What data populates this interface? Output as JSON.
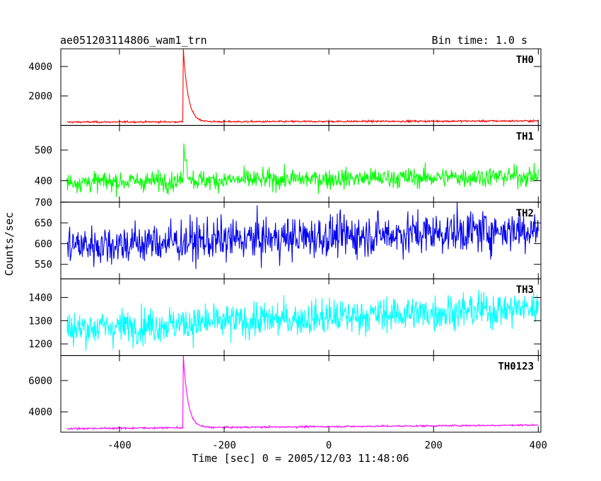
{
  "header": {
    "title": "ae051203114806_wam1_trn",
    "bin_time": "Bin time: 1.0 s"
  },
  "chart_data": {
    "type": "line",
    "xlabel": "Time [sec] 0 = 2005/12/03 11:48:06",
    "ylabel": "Counts/sec",
    "xlim": [
      -512,
      405
    ],
    "x_ticks": [
      -400,
      -200,
      0,
      200,
      400
    ],
    "time_range": [
      -500,
      400
    ],
    "panels": [
      {
        "name": "TH0",
        "color": "#ff0000",
        "ylim": [
          0,
          5200
        ],
        "y_ticks": [
          2000,
          4000
        ],
        "baseline": 230,
        "trend": 80,
        "noise": 60,
        "peak_value": 5200,
        "peak_time": -278,
        "decay": 9
      },
      {
        "name": "TH1",
        "color": "#00ff00",
        "ylim": [
          330,
          580
        ],
        "y_ticks": [
          400,
          500
        ],
        "baseline": 395,
        "trend": 20,
        "noise": 32,
        "peak_value": 540,
        "peak_time": -277,
        "decay": 5
      },
      {
        "name": "TH2",
        "color": "#0000ee",
        "ylim": [
          515,
          700
        ],
        "y_ticks": [
          550,
          600,
          650,
          700
        ],
        "baseline": 595,
        "trend": 40,
        "noise": 50,
        "peak_value": 0,
        "peak_time": -277,
        "decay": 5
      },
      {
        "name": "TH3",
        "color": "#00ffff",
        "ylim": [
          1150,
          1480
        ],
        "y_ticks": [
          1200,
          1300,
          1400
        ],
        "baseline": 1265,
        "trend": 90,
        "noise": 75,
        "peak_value": 0,
        "peak_time": -277,
        "decay": 5
      },
      {
        "name": "TH0123",
        "color": "#ff00ff",
        "ylim": [
          2700,
          7600
        ],
        "y_ticks": [
          4000,
          6000
        ],
        "baseline": 2930,
        "trend": 230,
        "noise": 55,
        "peak_value": 7500,
        "peak_time": -278,
        "decay": 9
      }
    ]
  }
}
